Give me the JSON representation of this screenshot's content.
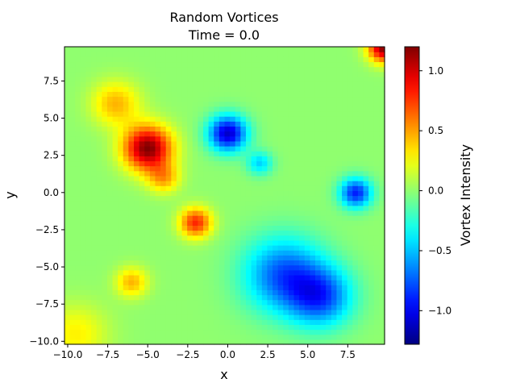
{
  "chart_data": {
    "type": "heatmap",
    "title": "Random Vortices",
    "subtitle": "Time = 0.0",
    "xlabel": "x",
    "ylabel": "y",
    "xlim": [
      -10.2,
      9.8
    ],
    "ylim": [
      -10.2,
      9.8
    ],
    "xticks": [
      -10.0,
      -7.5,
      -5.0,
      -2.5,
      0.0,
      2.5,
      5.0,
      7.5
    ],
    "xtick_labels": [
      "−10.0",
      "−7.5",
      "−5.0",
      "−2.5",
      "0.0",
      "2.5",
      "5.0",
      "7.5"
    ],
    "yticks": [
      -10.0,
      -7.5,
      -5.0,
      -2.5,
      0.0,
      2.5,
      5.0,
      7.5
    ],
    "ytick_labels": [
      "−10.0",
      "−7.5",
      "−5.0",
      "−2.5",
      "0.0",
      "2.5",
      "5.0",
      "7.5"
    ],
    "grid": false,
    "colormap": "jet",
    "colorbar": {
      "label": "Vortex Intensity",
      "vmin": -1.28,
      "vmax": 1.2,
      "ticks": [
        1.0,
        0.5,
        0.0,
        -0.5,
        -1.0
      ],
      "tick_labels": [
        "1.0",
        "0.5",
        "0.0",
        "−0.5",
        "−1.0"
      ]
    },
    "grid_resolution": 60,
    "vortices": [
      {
        "x": -5.0,
        "y": 3.0,
        "strength": 1.2,
        "radius": 1.5
      },
      {
        "x": -4.0,
        "y": 1.0,
        "strength": 0.45,
        "radius": 1.0
      },
      {
        "x": -7.0,
        "y": 6.0,
        "strength": 0.45,
        "radius": 1.5
      },
      {
        "x": -2.0,
        "y": -2.0,
        "strength": 0.8,
        "radius": 1.0
      },
      {
        "x": -6.0,
        "y": -6.0,
        "strength": 0.45,
        "radius": 1.0
      },
      {
        "x": -9.5,
        "y": -9.5,
        "strength": 0.3,
        "radius": 2.0
      },
      {
        "x": 0.0,
        "y": 4.0,
        "strength": -1.1,
        "radius": 1.2
      },
      {
        "x": 2.0,
        "y": 2.0,
        "strength": -0.45,
        "radius": 0.8
      },
      {
        "x": 8.0,
        "y": 0.0,
        "strength": -0.9,
        "radius": 1.0
      },
      {
        "x": 3.5,
        "y": -5.5,
        "strength": -0.75,
        "radius": 2.5
      },
      {
        "x": 5.8,
        "y": -7.0,
        "strength": -0.75,
        "radius": 2.0
      },
      {
        "x": 9.8,
        "y": 9.8,
        "strength": 1.2,
        "radius": 1.0
      }
    ]
  }
}
